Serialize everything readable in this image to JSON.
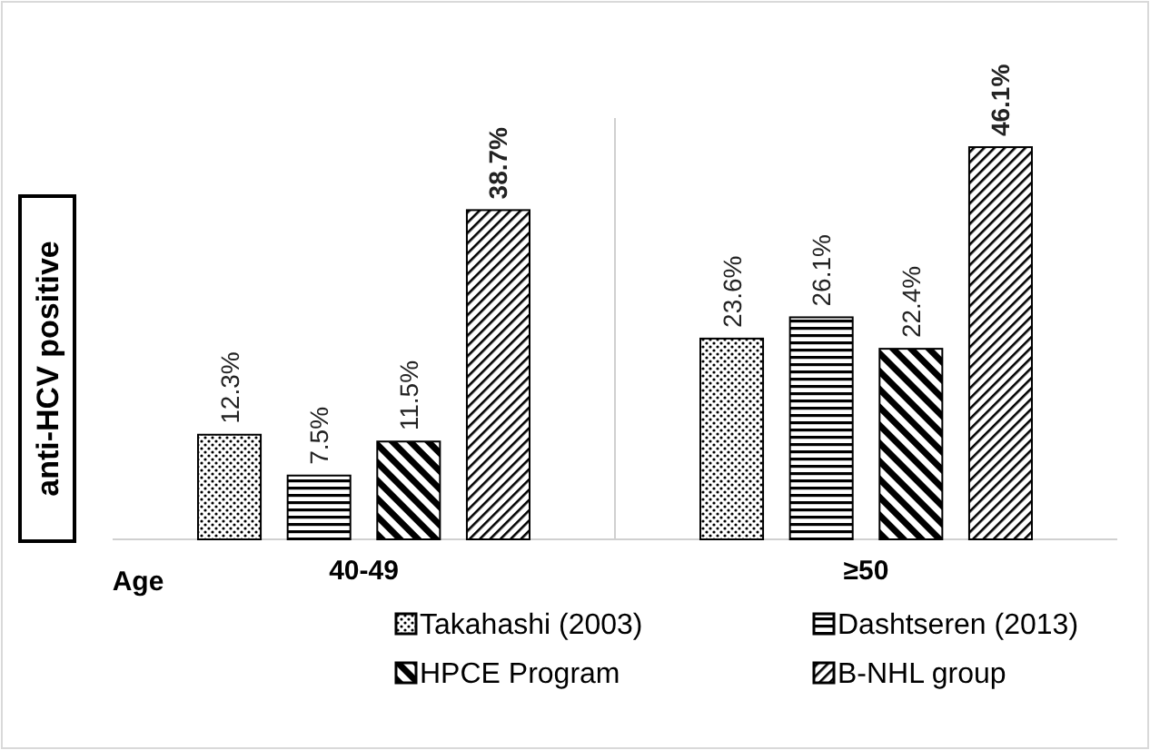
{
  "chart_data": {
    "type": "bar",
    "ylabel": "anti-HCV positive",
    "xlabel": "Age",
    "categories": [
      "40-49",
      "≥50"
    ],
    "series": [
      {
        "name": "Takahashi (2003)",
        "color": "#000000",
        "values": [
          12.3,
          23.6
        ],
        "value_labels": [
          "12.3%",
          "23.6%"
        ]
      },
      {
        "name": "Dashtseren (2013)",
        "color": "#000000",
        "values": [
          7.5,
          26.1
        ],
        "value_labels": [
          "7.5%",
          "26.1%"
        ]
      },
      {
        "name": "HPCE Program",
        "color": "#000000",
        "values": [
          11.5,
          22.4
        ],
        "value_labels": [
          "11.5%",
          "22.4%"
        ]
      },
      {
        "name": "B-NHL group",
        "color": "#000000",
        "values": [
          38.7,
          46.1
        ],
        "value_labels": [
          "38.7%",
          "46.1%"
        ]
      }
    ],
    "legend": "bottom"
  }
}
